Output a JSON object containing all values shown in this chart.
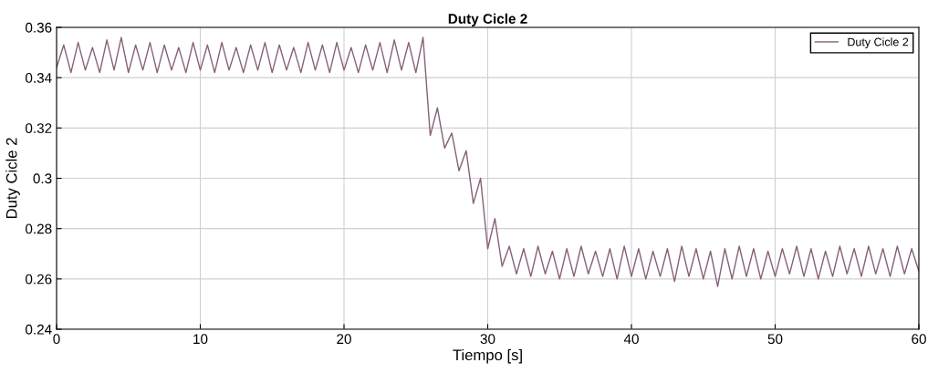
{
  "chart_data": {
    "type": "line",
    "title": "Duty Cicle 2",
    "xlabel": "Tiempo [s]",
    "ylabel": "Duty Cicle 2",
    "x": [
      0,
      0.5,
      1,
      1.5,
      2,
      2.5,
      3,
      3.5,
      4,
      4.5,
      5,
      5.5,
      6,
      6.5,
      7,
      7.5,
      8,
      8.5,
      9,
      9.5,
      10,
      10.5,
      11,
      11.5,
      12,
      12.5,
      13,
      13.5,
      14,
      14.5,
      15,
      15.5,
      16,
      16.5,
      17,
      17.5,
      18,
      18.5,
      19,
      19.5,
      20,
      20.5,
      21,
      21.5,
      22,
      22.5,
      23,
      23.5,
      24,
      24.5,
      25,
      25.5,
      26,
      26.5,
      27,
      27.5,
      28,
      28.5,
      29,
      29.5,
      30,
      30.5,
      31,
      31.5,
      32,
      32.5,
      33,
      33.5,
      34,
      34.5,
      35,
      35.5,
      36,
      36.5,
      37,
      37.5,
      38,
      38.5,
      39,
      39.5,
      40,
      40.5,
      41,
      41.5,
      42,
      42.5,
      43,
      43.5,
      44,
      44.5,
      45,
      45.5,
      46,
      46.5,
      47,
      47.5,
      48,
      48.5,
      49,
      49.5,
      50,
      50.5,
      51,
      51.5,
      52,
      52.5,
      53,
      53.5,
      54,
      54.5,
      55,
      55.5,
      56,
      56.5,
      57,
      57.5,
      58,
      58.5,
      59,
      59.5,
      60
    ],
    "series": [
      {
        "name": "Duty Cicle 2",
        "color": "#84617a",
        "values": [
          0.344,
          0.353,
          0.342,
          0.354,
          0.343,
          0.352,
          0.342,
          0.355,
          0.343,
          0.356,
          0.342,
          0.353,
          0.343,
          0.354,
          0.342,
          0.353,
          0.343,
          0.352,
          0.342,
          0.354,
          0.343,
          0.353,
          0.342,
          0.354,
          0.343,
          0.352,
          0.342,
          0.353,
          0.343,
          0.354,
          0.342,
          0.353,
          0.343,
          0.352,
          0.342,
          0.354,
          0.343,
          0.353,
          0.342,
          0.354,
          0.343,
          0.352,
          0.342,
          0.353,
          0.343,
          0.354,
          0.342,
          0.355,
          0.343,
          0.354,
          0.342,
          0.356,
          0.317,
          0.328,
          0.312,
          0.318,
          0.303,
          0.311,
          0.29,
          0.3,
          0.272,
          0.284,
          0.265,
          0.273,
          0.262,
          0.272,
          0.261,
          0.273,
          0.262,
          0.271,
          0.26,
          0.272,
          0.261,
          0.273,
          0.262,
          0.271,
          0.261,
          0.272,
          0.26,
          0.273,
          0.261,
          0.272,
          0.26,
          0.271,
          0.261,
          0.272,
          0.259,
          0.273,
          0.261,
          0.272,
          0.26,
          0.271,
          0.257,
          0.272,
          0.26,
          0.273,
          0.261,
          0.272,
          0.26,
          0.271,
          0.261,
          0.272,
          0.262,
          0.273,
          0.261,
          0.272,
          0.26,
          0.271,
          0.261,
          0.273,
          0.262,
          0.272,
          0.261,
          0.273,
          0.262,
          0.272,
          0.261,
          0.273,
          0.262,
          0.272,
          0.263
        ]
      }
    ],
    "xlim": [
      0,
      60
    ],
    "xticks": [
      0,
      10,
      20,
      30,
      40,
      50,
      60
    ],
    "ylim": [
      0.24,
      0.36
    ],
    "yticks": [
      0.24,
      0.26,
      0.28,
      {
        "value": 0.3,
        "label": "0.3"
      },
      0.32,
      0.34,
      0.36
    ],
    "grid": true,
    "legend": "top right",
    "marker": "none",
    "line_style": "solid"
  }
}
